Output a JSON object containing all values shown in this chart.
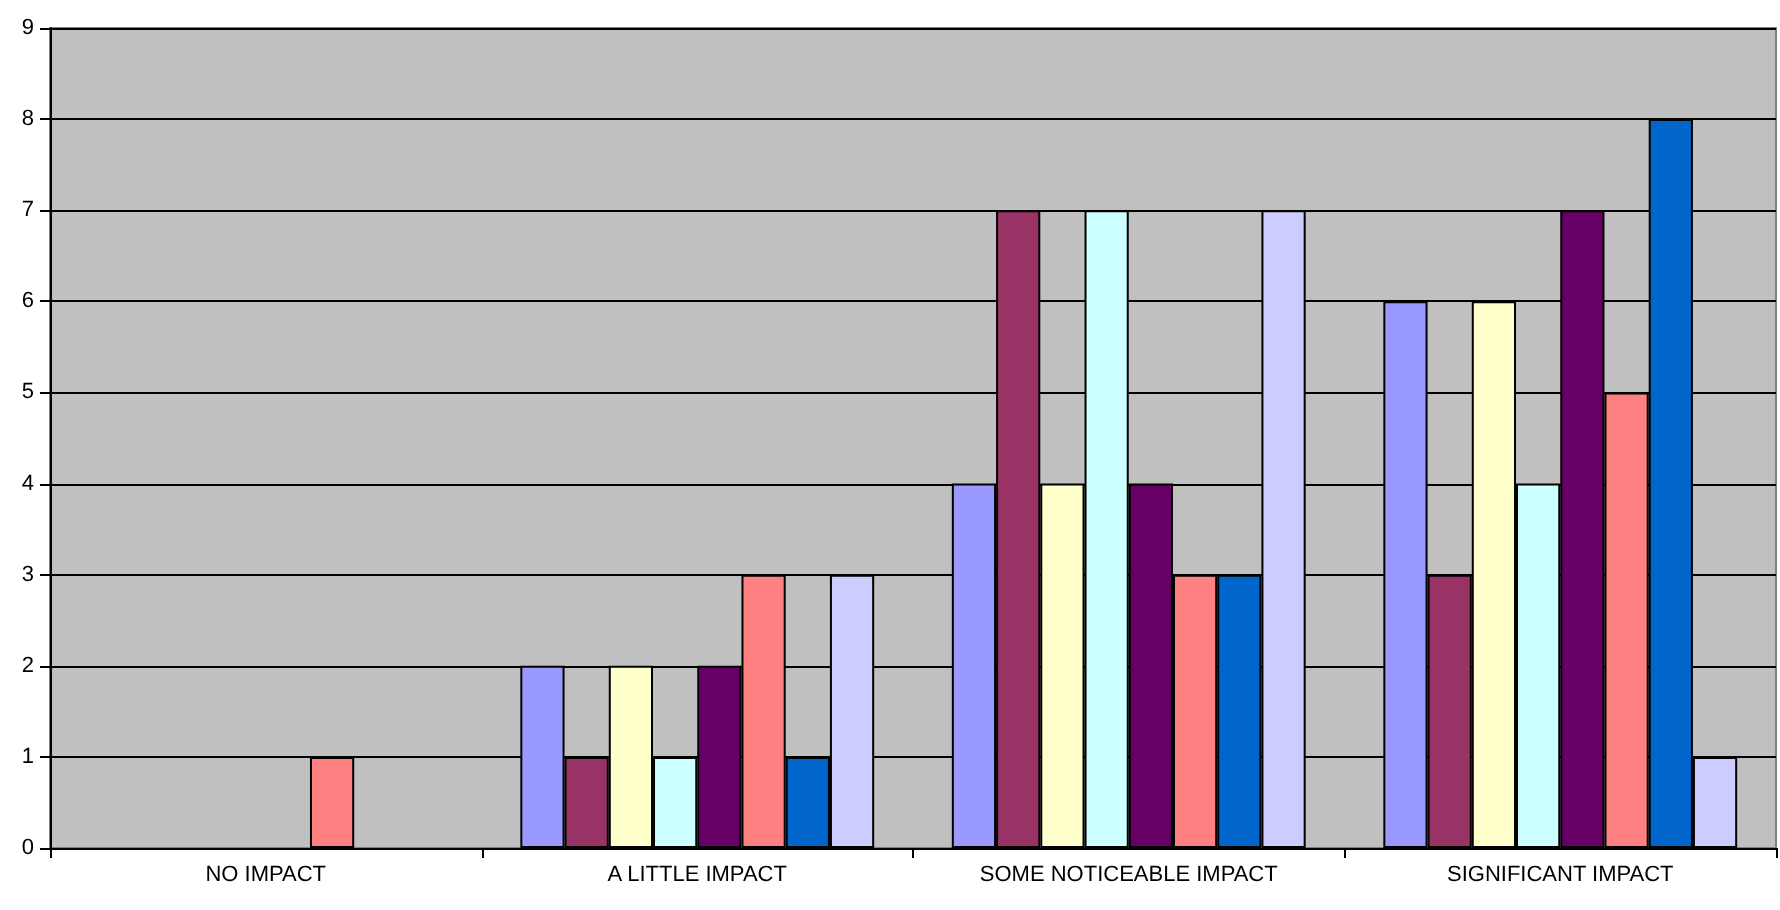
{
  "chart_data": {
    "type": "bar",
    "categories": [
      "NO IMPACT",
      "A LITTLE IMPACT",
      "SOME NOTICEABLE IMPACT",
      "SIGNIFICANT IMPACT"
    ],
    "series": [
      {
        "color": "#9999ff",
        "values": [
          0,
          2,
          4,
          6
        ]
      },
      {
        "color": "#993366",
        "values": [
          0,
          1,
          7,
          3
        ]
      },
      {
        "color": "#ffffcc",
        "values": [
          0,
          2,
          4,
          6
        ]
      },
      {
        "color": "#ccffff",
        "values": [
          0,
          1,
          7,
          4
        ]
      },
      {
        "color": "#660066",
        "values": [
          0,
          2,
          4,
          7
        ]
      },
      {
        "color": "#ff8080",
        "values": [
          1,
          3,
          3,
          5
        ]
      },
      {
        "color": "#0066cc",
        "values": [
          0,
          1,
          3,
          8
        ]
      },
      {
        "color": "#ccccff",
        "values": [
          0,
          3,
          7,
          1
        ]
      }
    ],
    "ylim": [
      0,
      9
    ],
    "yticks": [
      0,
      1,
      2,
      3,
      4,
      5,
      6,
      7,
      8,
      9
    ],
    "grid": "y"
  }
}
